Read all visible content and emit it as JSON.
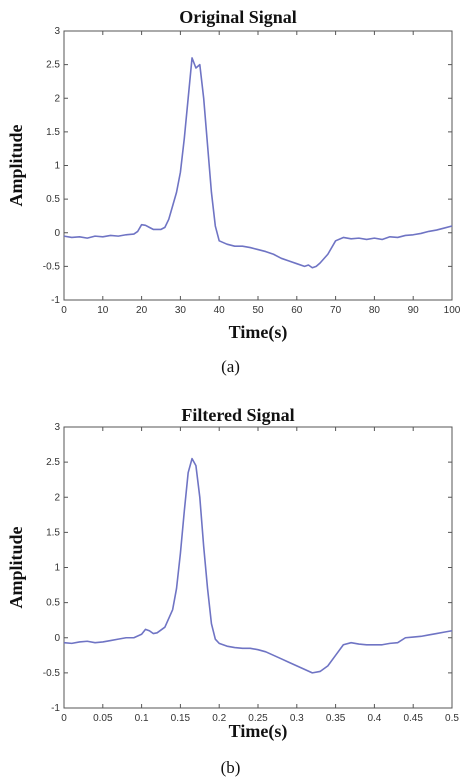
{
  "chart_data": [
    {
      "type": "line",
      "title": "Original Signal",
      "xlabel": "Time(s)",
      "ylabel": "Amplitude",
      "caption": "(a)",
      "xlim": [
        0,
        100
      ],
      "ylim": [
        -1,
        3
      ],
      "xticks": [
        "0",
        "10",
        "20",
        "30",
        "40",
        "50",
        "60",
        "70",
        "80",
        "90",
        "100"
      ],
      "yticks": [
        "-1",
        "-0.5",
        "0",
        "0.5",
        "1",
        "1.5",
        "2",
        "2.5",
        "3"
      ],
      "grid": false,
      "line_color": "#6f74c4",
      "series": [
        {
          "x": [
            0,
            2,
            4,
            6,
            8,
            10,
            12,
            14,
            16,
            18,
            19,
            20,
            21,
            22,
            23,
            24,
            25,
            26,
            27,
            28,
            29,
            30,
            31,
            32,
            33,
            34,
            35,
            36,
            37,
            38,
            39,
            40,
            42,
            44,
            46,
            48,
            50,
            52,
            54,
            56,
            58,
            60,
            62,
            63,
            64,
            65,
            66,
            68,
            70,
            72,
            74,
            76,
            78,
            80,
            82,
            84,
            86,
            88,
            90,
            92,
            94,
            96,
            98,
            100
          ],
          "y": [
            -0.05,
            -0.07,
            -0.06,
            -0.08,
            -0.05,
            -0.06,
            -0.04,
            -0.05,
            -0.03,
            -0.02,
            0.02,
            0.12,
            0.11,
            0.08,
            0.05,
            0.05,
            0.05,
            0.08,
            0.2,
            0.4,
            0.6,
            0.9,
            1.4,
            2.0,
            2.6,
            2.45,
            2.5,
            2.0,
            1.3,
            0.6,
            0.1,
            -0.12,
            -0.17,
            -0.2,
            -0.2,
            -0.22,
            -0.25,
            -0.28,
            -0.32,
            -0.38,
            -0.42,
            -0.46,
            -0.5,
            -0.48,
            -0.52,
            -0.5,
            -0.45,
            -0.32,
            -0.12,
            -0.07,
            -0.09,
            -0.08,
            -0.1,
            -0.08,
            -0.1,
            -0.06,
            -0.07,
            -0.04,
            -0.03,
            -0.01,
            0.02,
            0.04,
            0.07,
            0.1
          ]
        }
      ]
    },
    {
      "type": "line",
      "title": "Filtered Signal",
      "xlabel": "Time(s)",
      "ylabel": "Amplitude",
      "caption": "(b)",
      "xlim": [
        0,
        0.5
      ],
      "ylim": [
        -1,
        3
      ],
      "xticks": [
        "0",
        "0.05",
        "0.1",
        "0.15",
        "0.2",
        "0.25",
        "0.3",
        "0.35",
        "0.4",
        "0.45",
        "0.5"
      ],
      "yticks": [
        "-1",
        "-0.5",
        "0",
        "0.5",
        "1",
        "1.5",
        "2",
        "2.5",
        "3"
      ],
      "grid": false,
      "line_color": "#6f74c4",
      "series": [
        {
          "x": [
            0,
            0.01,
            0.02,
            0.03,
            0.04,
            0.05,
            0.06,
            0.07,
            0.08,
            0.09,
            0.1,
            0.105,
            0.11,
            0.115,
            0.12,
            0.13,
            0.14,
            0.145,
            0.15,
            0.155,
            0.16,
            0.165,
            0.17,
            0.175,
            0.18,
            0.185,
            0.19,
            0.195,
            0.2,
            0.21,
            0.22,
            0.23,
            0.24,
            0.25,
            0.26,
            0.27,
            0.28,
            0.29,
            0.3,
            0.31,
            0.32,
            0.33,
            0.34,
            0.35,
            0.36,
            0.37,
            0.38,
            0.39,
            0.4,
            0.41,
            0.42,
            0.43,
            0.44,
            0.45,
            0.46,
            0.47,
            0.48,
            0.49,
            0.5
          ],
          "y": [
            -0.07,
            -0.08,
            -0.06,
            -0.05,
            -0.07,
            -0.06,
            -0.04,
            -0.02,
            0.0,
            0.0,
            0.05,
            0.12,
            0.1,
            0.06,
            0.07,
            0.15,
            0.4,
            0.7,
            1.2,
            1.8,
            2.35,
            2.55,
            2.45,
            2.0,
            1.3,
            0.7,
            0.2,
            -0.02,
            -0.08,
            -0.12,
            -0.14,
            -0.15,
            -0.15,
            -0.17,
            -0.2,
            -0.25,
            -0.3,
            -0.35,
            -0.4,
            -0.45,
            -0.5,
            -0.48,
            -0.4,
            -0.25,
            -0.1,
            -0.07,
            -0.09,
            -0.1,
            -0.1,
            -0.1,
            -0.08,
            -0.07,
            0.0,
            0.01,
            0.02,
            0.04,
            0.06,
            0.08,
            0.1
          ]
        }
      ]
    }
  ]
}
